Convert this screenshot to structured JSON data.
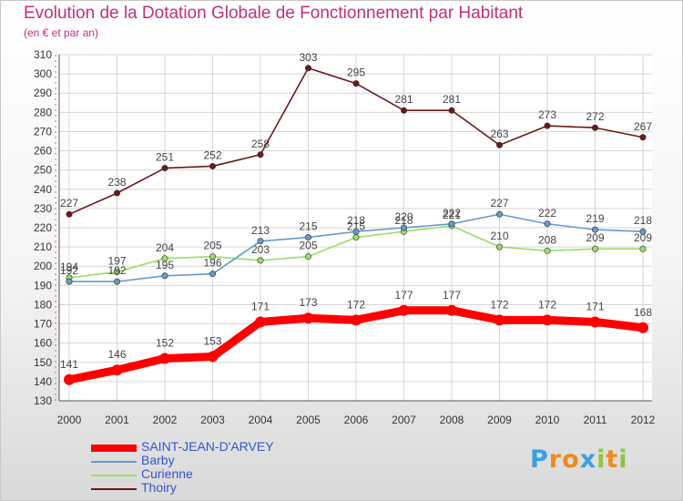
{
  "chart_data": {
    "type": "line",
    "title": "Evolution de la Dotation Globale de Fonctionnement par Habitant",
    "subtitle": "(en € et par an)",
    "xlabel": "",
    "ylabel": "",
    "categories": [
      "2000",
      "2001",
      "2002",
      "2003",
      "2004",
      "2005",
      "2006",
      "2007",
      "2008",
      "2009",
      "2010",
      "2011",
      "2012"
    ],
    "ylim": [
      130,
      310
    ],
    "yticks": [
      130,
      140,
      150,
      160,
      170,
      180,
      190,
      200,
      210,
      220,
      230,
      240,
      250,
      260,
      270,
      280,
      290,
      300,
      310
    ],
    "grid": true,
    "legend_position": "bottom-left",
    "series": [
      {
        "name": "SAINT-JEAN-D'ARVEY",
        "color": "#ff0000",
        "values": [
          141,
          146,
          152,
          153,
          171,
          173,
          172,
          177,
          177,
          172,
          172,
          171,
          168
        ]
      },
      {
        "name": "Barby",
        "color": "#6699cc",
        "values": [
          192,
          192,
          195,
          196,
          213,
          215,
          218,
          220,
          222,
          227,
          222,
          219,
          218
        ]
      },
      {
        "name": "Curienne",
        "color": "#99dd66",
        "values": [
          194,
          197,
          204,
          205,
          203,
          205,
          215,
          218,
          221,
          210,
          208,
          209,
          209
        ]
      },
      {
        "name": "Thoiry",
        "color": "#6b1a1a",
        "values": [
          227,
          238,
          251,
          252,
          258,
          303,
          295,
          281,
          281,
          263,
          273,
          272,
          267
        ]
      }
    ]
  },
  "logo": {
    "text": "Proxiti",
    "letters": [
      {
        "ch": "P",
        "color": "#3aa0e0"
      },
      {
        "ch": "r",
        "color": "#f08a1c"
      },
      {
        "ch": "o",
        "color": "#f08a1c"
      },
      {
        "ch": "x",
        "color": "#3aa0e0"
      },
      {
        "ch": "i",
        "color": "#8cc63f"
      },
      {
        "ch": "t",
        "color": "#f08a1c"
      },
      {
        "ch": "i",
        "color": "#8cc63f"
      }
    ]
  }
}
